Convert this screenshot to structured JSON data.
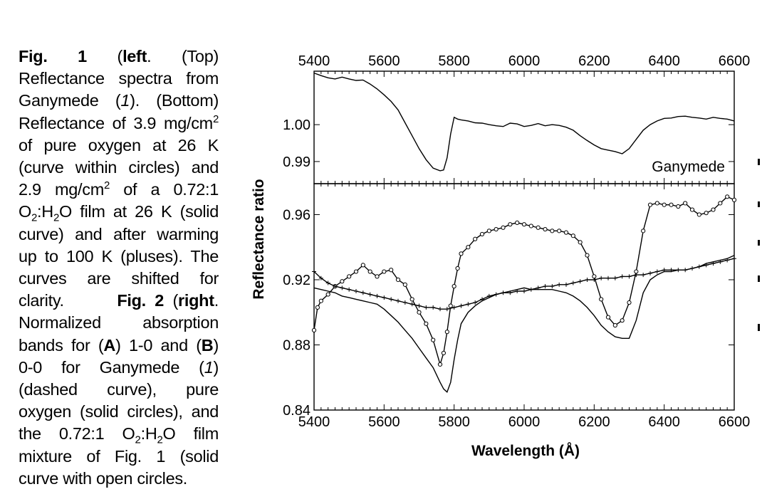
{
  "caption": {
    "fig1_label": "Fig. 1",
    "fig1_side": "left",
    "fig1_text_a": ". (Top) Reflectance spectra from Ganymede (",
    "ref1": "1",
    "fig1_text_b": "). (Bottom) Reflectance of 3.9 mg/cm",
    "sup2a": "2",
    "fig1_text_c": " of pure oxygen at 26 K (curve within circles) and 2.9 mg/cm",
    "sup2b": "2",
    "fig1_text_d": " of a 0.72:1 O",
    "sub2a": "2",
    "fig1_text_e": ":H",
    "sub2b": "2",
    "fig1_text_f": "O film at 26 K (solid curve) and after warming up to 100 K (pluses). The curves are shifted for clarity.",
    "fig2_label": "Fig. 2",
    "fig2_side": "right",
    "fig2_text_a": ". Normalized absorption bands for (",
    "label_a": "A",
    "fig2_text_b": ") 1-0 and (",
    "label_b": "B",
    "fig2_text_c": ") 0-0 for Ganymede (",
    "ref2": "1",
    "fig2_text_d": ") (dashed curve), pure oxygen (solid circles), and the 0.72:1 O",
    "sub2c": "2",
    "fig2_text_e": ":H",
    "sub2d": "2",
    "fig2_text_f": "O film mixture of Fig. 1 (solid curve with open circles."
  },
  "chart_data": {
    "type": "line",
    "xlabel": "Wavelength (Å)",
    "ylabel": "Reflectance ratio",
    "xlim": [
      5400,
      6600
    ],
    "x_ticks": [
      5400,
      5600,
      5800,
      6000,
      6200,
      6400,
      6600
    ],
    "top_panel": {
      "label": "Ganymede",
      "ylim": [
        0.984,
        1.0145
      ],
      "y_ticks": [
        0.99,
        1.0
      ],
      "y_tick_labels": [
        "0.99",
        "1.00"
      ],
      "series": [
        {
          "x": [
            5400,
            5420,
            5440,
            5460,
            5480,
            5500,
            5520,
            5540,
            5560,
            5580,
            5600,
            5620,
            5640,
            5660,
            5680,
            5700,
            5720,
            5740,
            5760,
            5770,
            5780,
            5790,
            5800,
            5810,
            5820,
            5840,
            5860,
            5880,
            5900,
            5920,
            5940,
            5960,
            5980,
            6000,
            6020,
            6040,
            6060,
            6080,
            6100,
            6120,
            6140,
            6160,
            6180,
            6200,
            6220,
            6240,
            6260,
            6280,
            6300,
            6320,
            6340,
            6360,
            6380,
            6400,
            6420,
            6440,
            6460,
            6480,
            6500,
            6520,
            6540,
            6560,
            6580,
            6600
          ],
          "values": [
            1.014,
            1.0133,
            1.0127,
            1.0124,
            1.0129,
            1.0124,
            1.012,
            1.0121,
            1.011,
            1.0097,
            1.0081,
            1.0063,
            1.004,
            1.0005,
            0.997,
            0.9935,
            0.9905,
            0.9882,
            0.9875,
            0.9877,
            0.991,
            0.9975,
            1.002,
            1.0015,
            1.0013,
            1.001,
            1.0005,
            1.0004,
            1.0,
            0.9997,
            0.9995,
            1.0004,
            1.0002,
            0.9995,
            0.9998,
            1.0003,
            0.9997,
            1.0,
            0.9998,
            0.9993,
            0.9985,
            0.997,
            0.9957,
            0.9945,
            0.9935,
            0.9931,
            0.9927,
            0.9921,
            0.9935,
            0.996,
            0.9985,
            1.0,
            1.001,
            1.0017,
            1.0018,
            1.0022,
            1.0023,
            1.002,
            1.0018,
            1.0015,
            1.002,
            1.0017,
            1.0015,
            1.001
          ]
        }
      ]
    },
    "bottom_panel": {
      "ylim": [
        0.84,
        0.979
      ],
      "y_ticks": [
        0.84,
        0.88,
        0.92,
        0.96
      ],
      "y_tick_labels": [
        "0.84",
        "0.88",
        "0.92",
        "0.96"
      ],
      "series": [
        {
          "marker": "circle",
          "x": [
            5400,
            5410,
            5420,
            5440,
            5460,
            5480,
            5500,
            5520,
            5540,
            5560,
            5580,
            5600,
            5620,
            5640,
            5660,
            5680,
            5700,
            5720,
            5740,
            5760,
            5770,
            5780,
            5790,
            5800,
            5810,
            5820,
            5840,
            5860,
            5880,
            5900,
            5920,
            5940,
            5960,
            5980,
            6000,
            6020,
            6040,
            6060,
            6080,
            6100,
            6120,
            6140,
            6160,
            6180,
            6200,
            6220,
            6240,
            6260,
            6280,
            6300,
            6320,
            6340,
            6360,
            6380,
            6400,
            6420,
            6440,
            6460,
            6480,
            6500,
            6520,
            6540,
            6560,
            6580,
            6600
          ],
          "values": [
            0.889,
            0.903,
            0.907,
            0.911,
            0.916,
            0.919,
            0.922,
            0.925,
            0.929,
            0.925,
            0.922,
            0.925,
            0.926,
            0.92,
            0.917,
            0.908,
            0.9,
            0.893,
            0.883,
            0.868,
            0.875,
            0.888,
            0.904,
            0.916,
            0.927,
            0.936,
            0.94,
            0.945,
            0.948,
            0.95,
            0.951,
            0.952,
            0.954,
            0.955,
            0.954,
            0.953,
            0.952,
            0.951,
            0.95,
            0.95,
            0.949,
            0.947,
            0.943,
            0.935,
            0.922,
            0.908,
            0.897,
            0.892,
            0.895,
            0.906,
            0.925,
            0.95,
            0.966,
            0.967,
            0.966,
            0.966,
            0.965,
            0.967,
            0.963,
            0.96,
            0.961,
            0.963,
            0.967,
            0.971,
            0.969
          ]
        },
        {
          "marker": "none",
          "x": [
            5400,
            5420,
            5440,
            5460,
            5480,
            5500,
            5520,
            5540,
            5560,
            5580,
            5600,
            5620,
            5640,
            5660,
            5680,
            5700,
            5720,
            5740,
            5760,
            5770,
            5780,
            5790,
            5800,
            5810,
            5820,
            5840,
            5860,
            5880,
            5900,
            5920,
            5940,
            5960,
            5980,
            6000,
            6020,
            6040,
            6060,
            6080,
            6100,
            6120,
            6140,
            6160,
            6180,
            6200,
            6220,
            6240,
            6260,
            6280,
            6300,
            6320,
            6340,
            6360,
            6380,
            6400,
            6420,
            6440,
            6460,
            6480,
            6500,
            6520,
            6540,
            6560,
            6580,
            6600
          ],
          "values": [
            0.915,
            0.914,
            0.913,
            0.912,
            0.91,
            0.909,
            0.908,
            0.907,
            0.906,
            0.905,
            0.902,
            0.898,
            0.894,
            0.889,
            0.884,
            0.878,
            0.872,
            0.866,
            0.857,
            0.853,
            0.851,
            0.857,
            0.871,
            0.883,
            0.893,
            0.9,
            0.904,
            0.907,
            0.909,
            0.911,
            0.912,
            0.913,
            0.914,
            0.915,
            0.914,
            0.914,
            0.914,
            0.914,
            0.913,
            0.912,
            0.91,
            0.907,
            0.903,
            0.898,
            0.892,
            0.888,
            0.885,
            0.884,
            0.884,
            0.895,
            0.912,
            0.92,
            0.923,
            0.925,
            0.925,
            0.926,
            0.926,
            0.927,
            0.928,
            0.93,
            0.931,
            0.932,
            0.933,
            0.935
          ]
        },
        {
          "marker": "plus",
          "x": [
            5400,
            5420,
            5440,
            5460,
            5480,
            5500,
            5520,
            5540,
            5560,
            5580,
            5600,
            5620,
            5640,
            5660,
            5680,
            5700,
            5720,
            5740,
            5760,
            5780,
            5800,
            5820,
            5840,
            5860,
            5880,
            5900,
            5920,
            5940,
            5960,
            5980,
            6000,
            6020,
            6040,
            6060,
            6080,
            6100,
            6120,
            6140,
            6160,
            6180,
            6200,
            6220,
            6240,
            6260,
            6280,
            6300,
            6320,
            6340,
            6360,
            6380,
            6400,
            6420,
            6440,
            6460,
            6480,
            6500,
            6520,
            6540,
            6560,
            6580,
            6600
          ],
          "values": [
            0.925,
            0.921,
            0.918,
            0.916,
            0.915,
            0.914,
            0.913,
            0.912,
            0.911,
            0.91,
            0.909,
            0.908,
            0.907,
            0.906,
            0.905,
            0.904,
            0.903,
            0.903,
            0.902,
            0.902,
            0.903,
            0.904,
            0.905,
            0.906,
            0.908,
            0.91,
            0.911,
            0.912,
            0.912,
            0.913,
            0.913,
            0.914,
            0.915,
            0.916,
            0.916,
            0.917,
            0.917,
            0.918,
            0.919,
            0.92,
            0.92,
            0.921,
            0.921,
            0.921,
            0.922,
            0.922,
            0.923,
            0.923,
            0.924,
            0.925,
            0.926,
            0.926,
            0.926,
            0.926,
            0.927,
            0.928,
            0.929,
            0.93,
            0.931,
            0.932,
            0.933
          ]
        }
      ]
    }
  }
}
